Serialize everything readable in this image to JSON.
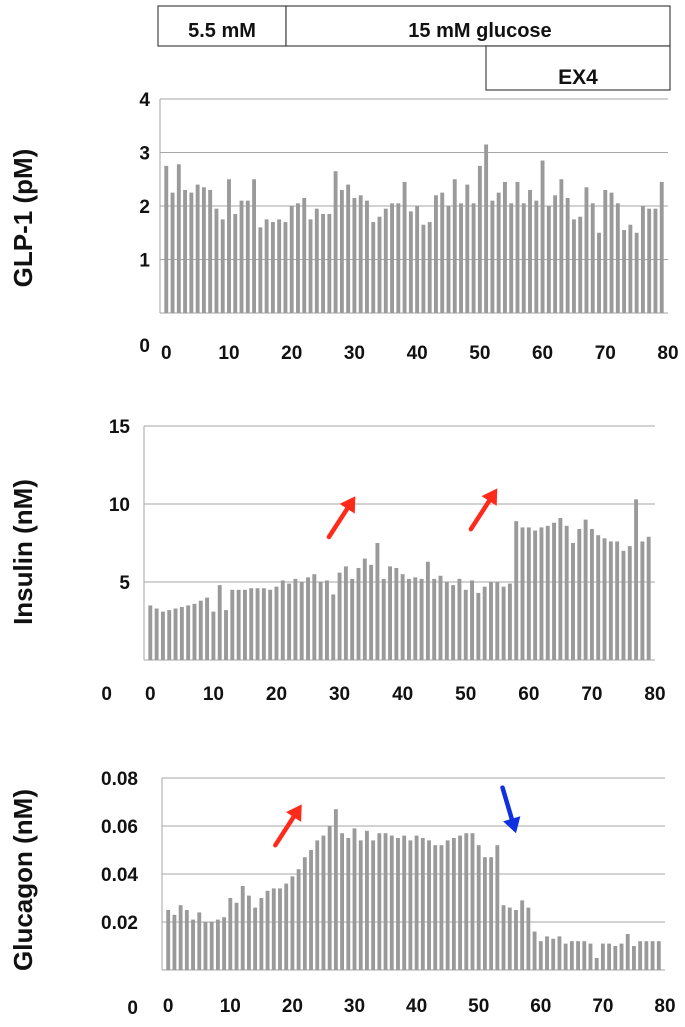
{
  "conditions": {
    "basal_label": "5.5 mM",
    "glucose_label": "15 mM glucose",
    "ex4_label": "EX4"
  },
  "colors": {
    "bar": "#9a9a9a",
    "grid": "#a6a6a6",
    "up_arrow": "#ff2a1a",
    "down_arrow": "#1030e0"
  },
  "chart_data": [
    {
      "type": "bar",
      "ylabel": "GLP-1 (pM)",
      "ylim": [
        0,
        4
      ],
      "yticks": [
        "0",
        "1",
        "2",
        "3",
        "4"
      ],
      "xlim": [
        -1,
        80
      ],
      "xticks": [
        "0",
        "10",
        "20",
        "30",
        "40",
        "50",
        "60",
        "70",
        "80"
      ],
      "grid": true,
      "x": [
        0,
        1,
        2,
        3,
        4,
        5,
        6,
        7,
        8,
        9,
        10,
        11,
        12,
        13,
        14,
        15,
        16,
        17,
        18,
        19,
        20,
        21,
        22,
        23,
        24,
        25,
        26,
        27,
        28,
        29,
        30,
        31,
        32,
        33,
        34,
        35,
        36,
        37,
        38,
        39,
        40,
        41,
        42,
        43,
        44,
        45,
        46,
        47,
        48,
        49,
        50,
        51,
        52,
        53,
        54,
        55,
        56,
        57,
        58,
        59,
        60,
        61,
        62,
        63,
        64,
        65,
        66,
        67,
        68,
        69,
        70,
        71,
        72,
        73,
        74,
        75,
        76,
        77,
        78,
        79
      ],
      "values": [
        2.75,
        2.25,
        2.78,
        2.3,
        2.25,
        2.4,
        2.35,
        2.3,
        1.95,
        1.75,
        2.5,
        1.85,
        2.1,
        2.1,
        2.5,
        1.6,
        1.75,
        1.7,
        1.75,
        1.7,
        2.0,
        2.05,
        2.15,
        1.75,
        1.95,
        1.85,
        1.85,
        2.65,
        2.3,
        2.4,
        2.15,
        2.2,
        2.1,
        1.7,
        1.8,
        1.95,
        2.05,
        2.05,
        2.45,
        1.9,
        2.0,
        1.65,
        1.7,
        2.2,
        2.25,
        2.0,
        2.5,
        2.05,
        2.4,
        2.05,
        2.75,
        3.15,
        2.1,
        2.25,
        2.45,
        2.05,
        2.45,
        2.05,
        2.3,
        2.1,
        2.85,
        2.0,
        2.2,
        2.5,
        2.15,
        1.75,
        1.8,
        2.35,
        2.05,
        1.5,
        2.3,
        2.25,
        2.05,
        1.55,
        1.65,
        1.5,
        2.0,
        1.95,
        1.95,
        2.45
      ],
      "annotations": []
    },
    {
      "type": "bar",
      "ylabel": "Insulin (nM)",
      "ylim": [
        0,
        15
      ],
      "ybase": 0,
      "ytick_values": [
        5,
        10,
        15
      ],
      "yticks": [
        "5",
        "10",
        "15"
      ],
      "ytick_zero": "0",
      "gridlines": [
        5,
        10,
        15
      ],
      "xlim": [
        -1,
        80
      ],
      "xticks": [
        "0",
        "10",
        "20",
        "30",
        "40",
        "50",
        "60",
        "70",
        "80"
      ],
      "grid": true,
      "x": [
        0,
        1,
        2,
        3,
        4,
        5,
        6,
        7,
        8,
        9,
        10,
        11,
        12,
        13,
        14,
        15,
        16,
        17,
        18,
        19,
        20,
        21,
        22,
        23,
        24,
        25,
        26,
        27,
        28,
        29,
        30,
        31,
        32,
        33,
        34,
        35,
        36,
        37,
        38,
        39,
        40,
        41,
        42,
        43,
        44,
        45,
        46,
        47,
        48,
        49,
        50,
        51,
        52,
        53,
        54,
        55,
        56,
        57,
        58,
        59,
        60,
        61,
        62,
        63,
        64,
        65,
        66,
        67,
        68,
        69,
        70,
        71,
        72,
        73,
        74,
        75,
        76,
        77,
        78,
        79
      ],
      "values": [
        3.5,
        3.3,
        3.1,
        3.2,
        3.3,
        3.4,
        3.5,
        3.6,
        3.8,
        4.0,
        3.1,
        4.8,
        3.2,
        4.5,
        4.5,
        4.5,
        4.6,
        4.6,
        4.6,
        4.5,
        4.7,
        5.1,
        4.9,
        5.2,
        5.0,
        5.3,
        5.5,
        5.0,
        5.1,
        4.2,
        5.6,
        6.0,
        5.2,
        5.9,
        6.5,
        6.1,
        7.5,
        5.2,
        6.0,
        5.9,
        5.5,
        5.2,
        5.3,
        5.2,
        6.3,
        5.2,
        5.4,
        5.0,
        4.8,
        5.2,
        4.5,
        5.1,
        4.3,
        4.7,
        5.0,
        5.0,
        4.7,
        4.9,
        8.9,
        8.5,
        8.5,
        8.3,
        8.5,
        8.6,
        8.8,
        9.1,
        8.6,
        7.5,
        8.4,
        9.0,
        8.4,
        8.0,
        7.8,
        7.6,
        7.6,
        7.0,
        7.3,
        10.3,
        7.6,
        7.9
      ],
      "annotations": [
        {
          "kind": "up-arrow",
          "x": 32.5,
          "y": 10.5,
          "color": "up_arrow"
        },
        {
          "kind": "up-arrow",
          "x": 55,
          "y": 11.0,
          "color": "up_arrow"
        }
      ]
    },
    {
      "type": "bar",
      "ylabel": "Glucagon (nM)",
      "ylim": [
        0,
        0.08
      ],
      "yticks": [
        "0",
        "0.02",
        "0.04",
        "0.06",
        "0.08"
      ],
      "xlim": [
        -1,
        80
      ],
      "xticks": [
        "0",
        "10",
        "20",
        "30",
        "40",
        "50",
        "60",
        "70",
        "80"
      ],
      "grid": true,
      "x": [
        0,
        1,
        2,
        3,
        4,
        5,
        6,
        7,
        8,
        9,
        10,
        11,
        12,
        13,
        14,
        15,
        16,
        17,
        18,
        19,
        20,
        21,
        22,
        23,
        24,
        25,
        26,
        27,
        28,
        29,
        30,
        31,
        32,
        33,
        34,
        35,
        36,
        37,
        38,
        39,
        40,
        41,
        42,
        43,
        44,
        45,
        46,
        47,
        48,
        49,
        50,
        51,
        52,
        53,
        54,
        55,
        56,
        57,
        58,
        59,
        60,
        61,
        62,
        63,
        64,
        65,
        66,
        67,
        68,
        69,
        70,
        71,
        72,
        73,
        74,
        75,
        76,
        77,
        78,
        79
      ],
      "values": [
        0.025,
        0.023,
        0.027,
        0.025,
        0.021,
        0.024,
        0.02,
        0.02,
        0.021,
        0.022,
        0.03,
        0.028,
        0.035,
        0.031,
        0.026,
        0.03,
        0.033,
        0.034,
        0.034,
        0.036,
        0.039,
        0.042,
        0.047,
        0.05,
        0.054,
        0.056,
        0.06,
        0.067,
        0.057,
        0.055,
        0.059,
        0.054,
        0.058,
        0.054,
        0.057,
        0.057,
        0.056,
        0.055,
        0.056,
        0.054,
        0.056,
        0.055,
        0.054,
        0.052,
        0.052,
        0.054,
        0.055,
        0.056,
        0.057,
        0.057,
        0.052,
        0.047,
        0.047,
        0.052,
        0.027,
        0.026,
        0.025,
        0.029,
        0.026,
        0.016,
        0.012,
        0.014,
        0.013,
        0.014,
        0.011,
        0.012,
        0.012,
        0.012,
        0.011,
        0.005,
        0.011,
        0.011,
        0.01,
        0.011,
        0.015,
        0.01,
        0.012,
        0.012,
        0.012,
        0.012
      ],
      "annotations": [
        {
          "kind": "up-arrow",
          "x": 21.5,
          "y": 0.069,
          "color": "up_arrow"
        },
        {
          "kind": "down-arrow",
          "x": 56,
          "y": 0.057,
          "color": "down_arrow"
        }
      ]
    }
  ]
}
